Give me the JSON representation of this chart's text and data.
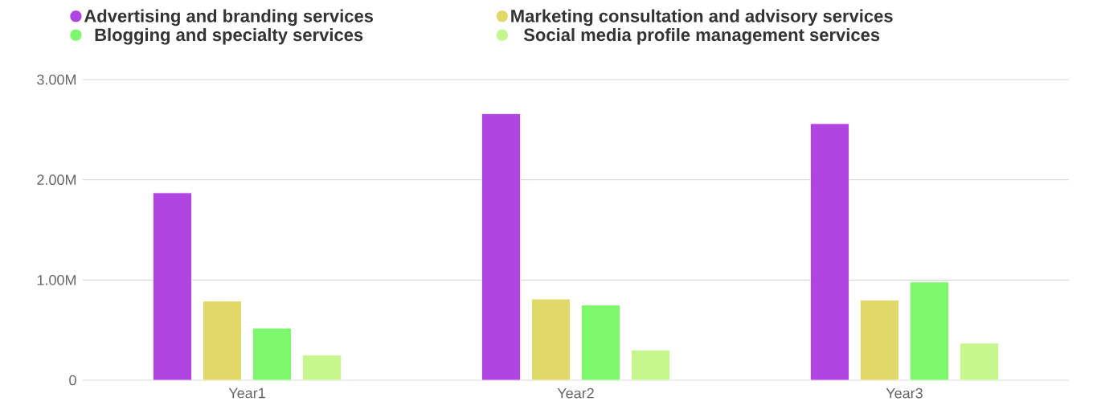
{
  "chart_data": {
    "type": "bar",
    "categories": [
      "Year1",
      "Year2",
      "Year3"
    ],
    "series": [
      {
        "name": "Advertising and branding services",
        "color": "#b044e0",
        "values": [
          1870000,
          2660000,
          2560000
        ]
      },
      {
        "name": "Marketing consultation and advisory services",
        "color": "#e0d96a",
        "values": [
          790000,
          810000,
          800000
        ]
      },
      {
        "name": "Blogging and specialty services",
        "color": "#7df76b",
        "values": [
          520000,
          750000,
          980000
        ]
      },
      {
        "name": "Social media profile management services",
        "color": "#c5f78c",
        "values": [
          250000,
          300000,
          370000
        ]
      }
    ],
    "ylim": [
      0,
      3000000
    ],
    "yticks": [
      0,
      {
        "value": 1000000,
        "label": "1.00M"
      },
      {
        "value": 2000000,
        "label": "2.00M"
      },
      {
        "value": 3000000,
        "label": "3.00M"
      }
    ],
    "grid": "y",
    "legend": "top"
  }
}
